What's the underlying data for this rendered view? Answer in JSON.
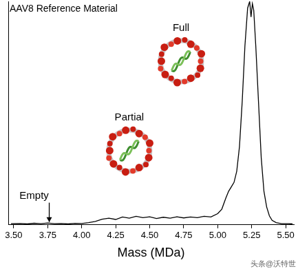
{
  "chart_data": {
    "type": "line",
    "title": "AAV8 Reference Material",
    "x_label": "Mass (MDa)",
    "watermark": "头条@沃特世",
    "x": [
      3.48,
      3.55,
      3.6,
      3.65,
      3.7,
      3.75,
      3.8,
      3.85,
      3.9,
      3.95,
      4.0,
      4.05,
      4.1,
      4.15,
      4.2,
      4.25,
      4.3,
      4.35,
      4.4,
      4.45,
      4.5,
      4.55,
      4.6,
      4.65,
      4.7,
      4.75,
      4.8,
      4.85,
      4.9,
      4.95,
      5.0,
      5.03,
      5.06,
      5.08,
      5.1,
      5.12,
      5.14,
      5.16,
      5.18,
      5.2,
      5.22,
      5.235,
      5.245,
      5.255,
      5.265,
      5.28,
      5.3,
      5.32,
      5.34,
      5.36,
      5.38,
      5.4,
      5.43,
      5.47,
      5.52,
      5.55
    ],
    "values": [
      0.5,
      0.6,
      0.4,
      0.7,
      0.5,
      0.8,
      0.5,
      0.6,
      0.4,
      0.7,
      0.6,
      1.0,
      1.5,
      2.5,
      3.0,
      2.4,
      3.5,
      3.0,
      3.8,
      3.2,
      3.6,
      2.8,
      3.4,
      3.0,
      3.6,
      3.1,
      3.5,
      3.2,
      3.8,
      3.5,
      5.0,
      7,
      12,
      15,
      17,
      19,
      24,
      35,
      55,
      80,
      97,
      100,
      93,
      99,
      96,
      80,
      55,
      30,
      15,
      8,
      4,
      2,
      1,
      0.5,
      0.5,
      0.4
    ],
    "color": "#000000",
    "xlim": [
      3.46,
      5.56
    ],
    "xticks": [
      {
        "value": 3.5,
        "label": "3.50"
      },
      {
        "value": 3.75,
        "label": "3.75"
      },
      {
        "value": 4.0,
        "label": "4.00"
      },
      {
        "value": 4.25,
        "label": "4.25"
      },
      {
        "value": 4.5,
        "label": "4.50"
      },
      {
        "value": 4.75,
        "label": "4.75"
      },
      {
        "value": 5.0,
        "label": "5.00"
      },
      {
        "value": 5.25,
        "label": "5.25"
      },
      {
        "value": 5.5,
        "label": "5.50"
      }
    ],
    "ylim": [
      0,
      100
    ],
    "tick_labels": "x",
    "grid": false,
    "annotations": [
      {
        "text": "Empty",
        "x": 3.65,
        "y": 13,
        "marker": "arrow"
      },
      {
        "text": "Partial",
        "x": 4.35,
        "y": 48,
        "marker": "capsid"
      },
      {
        "text": "Full",
        "x": 4.73,
        "y": 88,
        "marker": "capsid"
      }
    ]
  }
}
